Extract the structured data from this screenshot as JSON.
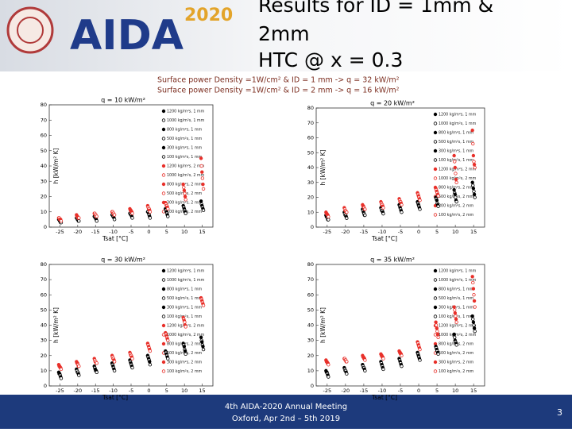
{
  "header": {
    "logo": "AIDA",
    "logo_year": "2020",
    "title": [
      "Results for ID = 1mm &",
      "2mm",
      "HTC @ x = 0.3"
    ],
    "subtitle": [
      "Surface power Density =1W/cm² & ID = 1 mm -> q = 32 kW/m²",
      "Surface power Density =1W/cm² & ID = 2 mm -> q = 16 kW/m²"
    ]
  },
  "footer": {
    "lines": [
      "4th AIDA-2020 Annual Meeting",
      "Oxford, Apr 2nd – 5th 2019"
    ],
    "page": "3"
  },
  "chart_data": [
    {
      "type": "scatter",
      "title": "q = 10 kW/m²",
      "x_label": "Tsat [°C]",
      "y_label": "h [kW/m² K]",
      "x": [
        -25,
        -20,
        -15,
        -10,
        -5,
        0,
        5,
        10,
        15
      ],
      "xlim": [
        -28,
        18
      ],
      "xticks": [
        -25,
        -20,
        -15,
        -10,
        -5,
        0,
        5,
        10,
        15
      ],
      "ylim": [
        0,
        80
      ],
      "yticks": [
        0,
        10,
        20,
        30,
        40,
        50,
        60,
        70,
        80
      ],
      "series": [
        {
          "name": "1200 kg/m²s, 1 mm",
          "color": "#000000",
          "values": [
            5,
            6,
            7,
            8,
            9,
            10,
            12,
            14,
            17
          ]
        },
        {
          "name": "1000 kg/m²s, 1 mm",
          "color": "#000000",
          "values": [
            5,
            6,
            7,
            8,
            9,
            10,
            11,
            13,
            15
          ]
        },
        {
          "name": "800 kg/m²s, 1 mm",
          "color": "#000000",
          "values": [
            4,
            5,
            6,
            7,
            8,
            9,
            10,
            12,
            14
          ]
        },
        {
          "name": "500 kg/m²s, 1 mm",
          "color": "#000000",
          "values": [
            4,
            5,
            6,
            7,
            8,
            8,
            9,
            11,
            13
          ]
        },
        {
          "name": "300 kg/m²s, 1 mm",
          "color": "#000000",
          "values": [
            3,
            4,
            5,
            6,
            7,
            7,
            8,
            10,
            12
          ]
        },
        {
          "name": "100 kg/m²s, 1 mm",
          "color": "#000000",
          "values": [
            3,
            4,
            4,
            5,
            6,
            6,
            7,
            9,
            11
          ]
        },
        {
          "name": "1200 kg/m²s, 2 mm",
          "color": "#e8302a",
          "values": [
            6,
            8,
            9,
            10,
            12,
            14,
            16,
            28,
            45
          ]
        },
        {
          "name": "1000 kg/m²s, 2 mm",
          "color": "#e8302a",
          "values": [
            6,
            7,
            9,
            10,
            11,
            13,
            15,
            26,
            40
          ]
        },
        {
          "name": "800 kg/m²s, 2 mm",
          "color": "#e8302a",
          "values": [
            5,
            7,
            8,
            9,
            11,
            12,
            14,
            24,
            36
          ]
        },
        {
          "name": "500 kg/m²s, 2 mm",
          "color": "#e8302a",
          "values": [
            5,
            6,
            8,
            9,
            10,
            12,
            14,
            22,
            32
          ]
        },
        {
          "name": "300 kg/m²s, 2 mm",
          "color": "#e8302a",
          "values": [
            5,
            6,
            7,
            8,
            10,
            11,
            13,
            20,
            28
          ]
        },
        {
          "name": "100 kg/m²s, 2 mm",
          "color": "#e8302a",
          "values": [
            4,
            6,
            7,
            8,
            9,
            10,
            12,
            18,
            25
          ]
        }
      ]
    },
    {
      "type": "scatter",
      "title": "q = 20 kW/m²",
      "x_label": "Tsat [°C]",
      "y_label": "h [kW/m² K]",
      "x": [
        -25,
        -20,
        -15,
        -10,
        -5,
        0,
        5,
        10,
        15
      ],
      "xlim": [
        -28,
        18
      ],
      "xticks": [
        -25,
        -20,
        -15,
        -10,
        -5,
        0,
        5,
        10,
        15
      ],
      "ylim": [
        0,
        80
      ],
      "yticks": [
        0,
        10,
        20,
        30,
        40,
        50,
        60,
        70,
        80
      ],
      "series": [
        {
          "name": "1200 kg/m²s, 1 mm",
          "color": "#000000",
          "values": [
            8,
            10,
            12,
            13,
            15,
            17,
            20,
            25,
            30
          ]
        },
        {
          "name": "1000 kg/m²s, 1 mm",
          "color": "#000000",
          "values": [
            7,
            9,
            11,
            12,
            14,
            16,
            19,
            23,
            28
          ]
        },
        {
          "name": "800 kg/m²s, 1 mm",
          "color": "#000000",
          "values": [
            7,
            8,
            10,
            11,
            13,
            15,
            18,
            22,
            26
          ]
        },
        {
          "name": "500 kg/m²s, 1 mm",
          "color": "#000000",
          "values": [
            6,
            8,
            9,
            11,
            12,
            14,
            16,
            20,
            24
          ]
        },
        {
          "name": "300 kg/m²s, 1 mm",
          "color": "#000000",
          "values": [
            5,
            7,
            8,
            10,
            11,
            13,
            15,
            18,
            22
          ]
        },
        {
          "name": "100 kg/m²s, 1 mm",
          "color": "#000000",
          "values": [
            5,
            6,
            8,
            9,
            10,
            12,
            14,
            17,
            20
          ]
        },
        {
          "name": "1200 kg/m²s, 2 mm",
          "color": "#e8302a",
          "values": [
            10,
            13,
            15,
            17,
            19,
            23,
            26,
            48,
            65
          ]
        },
        {
          "name": "1000 kg/m²s, 2 mm",
          "color": "#e8302a",
          "values": [
            9,
            12,
            14,
            16,
            18,
            22,
            25,
            44,
            56
          ]
        },
        {
          "name": "800 kg/m²s, 2 mm",
          "color": "#e8302a",
          "values": [
            9,
            11,
            14,
            15,
            17,
            21,
            24,
            40,
            48
          ]
        },
        {
          "name": "500 kg/m²s, 2 mm",
          "color": "#e8302a",
          "values": [
            8,
            11,
            13,
            15,
            17,
            20,
            23,
            36,
            44
          ]
        },
        {
          "name": "300 kg/m²s, 2 mm",
          "color": "#e8302a",
          "values": [
            8,
            10,
            12,
            14,
            16,
            19,
            22,
            32,
            42
          ]
        },
        {
          "name": "100 kg/m²s, 2 mm",
          "color": "#e8302a",
          "values": [
            7,
            10,
            12,
            13,
            15,
            18,
            21,
            30,
            40
          ]
        }
      ]
    },
    {
      "type": "scatter",
      "title": "q = 30 kW/m²",
      "x_label": "Tsat [°C]",
      "y_label": "h [kW/m² K]",
      "x": [
        -25,
        -20,
        -15,
        -10,
        -5,
        0,
        5,
        10,
        15
      ],
      "xlim": [
        -28,
        18
      ],
      "xticks": [
        -25,
        -20,
        -15,
        -10,
        -5,
        0,
        5,
        10,
        15
      ],
      "ylim": [
        0,
        80
      ],
      "yticks": [
        0,
        10,
        20,
        30,
        40,
        50,
        60,
        70,
        80
      ],
      "series": [
        {
          "name": "1200 kg/m²s, 1 mm",
          "color": "#000000",
          "values": [
            9,
            11,
            13,
            15,
            17,
            20,
            23,
            28,
            32
          ]
        },
        {
          "name": "1000 kg/m²s, 1 mm",
          "color": "#000000",
          "values": [
            8,
            10,
            12,
            14,
            16,
            19,
            22,
            27,
            30
          ]
        },
        {
          "name": "800 kg/m²s, 1 mm",
          "color": "#000000",
          "values": [
            8,
            9,
            11,
            13,
            15,
            18,
            21,
            26,
            29
          ]
        },
        {
          "name": "500 kg/m²s, 1 mm",
          "color": "#000000",
          "values": [
            7,
            9,
            10,
            12,
            14,
            17,
            20,
            24,
            27
          ]
        },
        {
          "name": "300 kg/m²s, 1 mm",
          "color": "#000000",
          "values": [
            6,
            8,
            10,
            11,
            13,
            16,
            19,
            23,
            26
          ]
        },
        {
          "name": "100 kg/m²s, 1 mm",
          "color": "#000000",
          "values": [
            5,
            7,
            9,
            10,
            12,
            14,
            18,
            21,
            24
          ]
        },
        {
          "name": "1200 kg/m²s, 2 mm",
          "color": "#e8302a",
          "values": [
            14,
            16,
            18,
            20,
            22,
            28,
            35,
            45,
            58
          ]
        },
        {
          "name": "1000 kg/m²s, 2 mm",
          "color": "#e8302a",
          "values": [
            13,
            15,
            17,
            19,
            21,
            27,
            34,
            44,
            57
          ]
        },
        {
          "name": "800 kg/m²s, 2 mm",
          "color": "#e8302a",
          "values": [
            13,
            15,
            16,
            18,
            20,
            26,
            33,
            43,
            56
          ]
        },
        {
          "name": "500 kg/m²s, 2 mm",
          "color": "#e8302a",
          "values": [
            12,
            14,
            16,
            18,
            20,
            25,
            32,
            42,
            55
          ]
        },
        {
          "name": "300 kg/m²s, 2 mm",
          "color": "#e8302a",
          "values": [
            12,
            13,
            15,
            17,
            19,
            24,
            31,
            40,
            54
          ]
        },
        {
          "name": "100 kg/m²s, 2 mm",
          "color": "#e8302a",
          "values": [
            11,
            13,
            15,
            16,
            18,
            23,
            30,
            39,
            53
          ]
        }
      ]
    },
    {
      "type": "scatter",
      "title": "q = 35 kW/m²",
      "x_label": "Tsat [°C]",
      "y_label": "h [kW/m² K]",
      "x": [
        -25,
        -20,
        -15,
        -10,
        -5,
        0,
        5,
        10,
        15
      ],
      "xlim": [
        -28,
        18
      ],
      "xticks": [
        -25,
        -20,
        -15,
        -10,
        -5,
        0,
        5,
        10,
        15
      ],
      "ylim": [
        0,
        80
      ],
      "yticks": [
        0,
        10,
        20,
        30,
        40,
        50,
        60,
        70,
        80
      ],
      "series": [
        {
          "name": "1200 kg/m²s, 1 mm",
          "color": "#000000",
          "values": [
            10,
            12,
            14,
            16,
            18,
            22,
            26,
            34,
            46
          ]
        },
        {
          "name": "1000 kg/m²s, 1 mm",
          "color": "#000000",
          "values": [
            9,
            11,
            13,
            15,
            17,
            21,
            25,
            32,
            44
          ]
        },
        {
          "name": "800 kg/m²s, 1 mm",
          "color": "#000000",
          "values": [
            9,
            10,
            12,
            14,
            16,
            20,
            24,
            30,
            42
          ]
        },
        {
          "name": "500 kg/m²s, 1 mm",
          "color": "#000000",
          "values": [
            8,
            10,
            12,
            13,
            15,
            19,
            23,
            29,
            40
          ]
        },
        {
          "name": "300 kg/m²s, 1 mm",
          "color": "#000000",
          "values": [
            7,
            9,
            11,
            12,
            14,
            18,
            22,
            28,
            38
          ]
        },
        {
          "name": "100 kg/m²s, 1 mm",
          "color": "#000000",
          "values": [
            6,
            8,
            10,
            11,
            13,
            17,
            21,
            27,
            36
          ]
        },
        {
          "name": "1200 kg/m²s, 2 mm",
          "color": "#e8302a",
          "values": [
            17,
            18,
            20,
            21,
            23,
            29,
            42,
            52,
            72
          ]
        },
        {
          "name": "1000 kg/m²s, 2 mm",
          "color": "#e8302a",
          "values": [
            16,
            18,
            19,
            20,
            22,
            28,
            40,
            50,
            68
          ]
        },
        {
          "name": "800 kg/m²s, 2 mm",
          "color": "#e8302a",
          "values": [
            16,
            17,
            19,
            20,
            22,
            27,
            38,
            48,
            64
          ]
        },
        {
          "name": "500 kg/m²s, 2 mm",
          "color": "#e8302a",
          "values": [
            15,
            17,
            18,
            19,
            21,
            26,
            36,
            46,
            60
          ]
        },
        {
          "name": "300 kg/m²s, 2 mm",
          "color": "#e8302a",
          "values": [
            15,
            16,
            18,
            19,
            21,
            25,
            34,
            44,
            56
          ]
        },
        {
          "name": "100 kg/m²s, 2 mm",
          "color": "#e8302a",
          "values": [
            14,
            16,
            17,
            18,
            20,
            24,
            32,
            42,
            52
          ]
        }
      ]
    }
  ]
}
